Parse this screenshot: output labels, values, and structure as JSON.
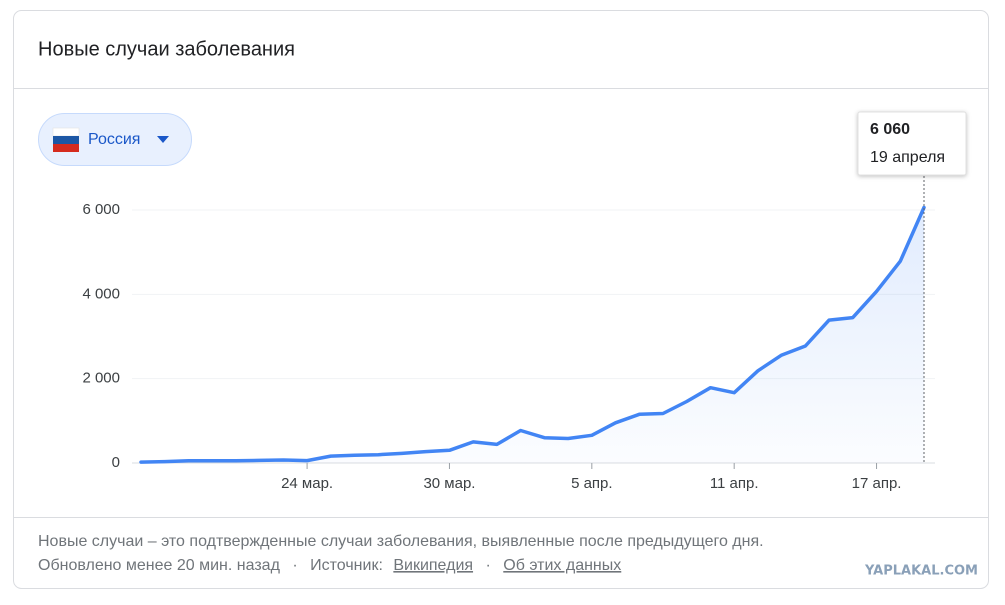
{
  "header": {
    "title": "Новые случаи заболевания"
  },
  "country": "Россия",
  "chart_data": {
    "type": "line",
    "categories": [
      null,
      null,
      null,
      null,
      null,
      null,
      null,
      "24 мар.",
      null,
      null,
      null,
      null,
      null,
      "30 мар.",
      null,
      null,
      null,
      null,
      null,
      "5 апр.",
      null,
      null,
      null,
      null,
      null,
      "11 апр.",
      null,
      null,
      null,
      null,
      null,
      "17 апр.",
      null,
      null
    ],
    "values": [
      21,
      33,
      52,
      54,
      53,
      61,
      71,
      57,
      163,
      182,
      196,
      228,
      270,
      302,
      501,
      440,
      771,
      601,
      582,
      658,
      954,
      1154,
      1175,
      1459,
      1786,
      1667,
      2186,
      2558,
      2774,
      3388,
      3448,
      4070,
      4785,
      6060
    ],
    "color": "#4285f4",
    "ylim": [
      0,
      6000
    ],
    "yticks": [
      0,
      {
        "value": 2000,
        "label": "2 000"
      },
      {
        "value": 4000,
        "label": "4 000"
      },
      {
        "value": 6000,
        "label": "6 000"
      }
    ],
    "grid": true,
    "tooltip": {
      "label": "6 060",
      "date": "19 апреля"
    }
  },
  "footer": {
    "note": "Новые случаи – это подтвержденные случаи заболевания, выявленные после предыдущего дня.",
    "updated": "Обновлено менее 20 мин. назад",
    "separator": "·",
    "source_label": "Источник:",
    "links": [
      "Википедия",
      "Об этих данных"
    ]
  },
  "watermark": "YAPLAKAL.COM"
}
